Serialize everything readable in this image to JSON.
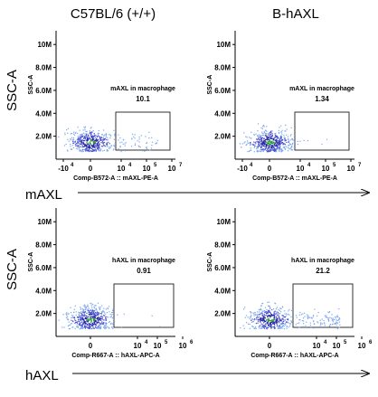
{
  "header": {
    "col1": "C57BL/6 (+/+)",
    "col2": "B-hAXL"
  },
  "row_labels": {
    "y_big": "SSC-A",
    "x_row1": "mAXL",
    "x_row2": "hAXL"
  },
  "colors": {
    "dot_dark": "#2626a8",
    "dot_mid": "#4a56d0",
    "dot_light": "#7aa8ee",
    "dot_hot": "#2f9a3a",
    "axis": "#000000"
  },
  "chart_data": [
    {
      "type": "scatter",
      "sample": "C57BL/6 (+/+)",
      "ylabel": "SSC-A",
      "xlabel": "Comp-B572-A :: mAXL-PE-A",
      "y_ticks": [
        "2.0M",
        "4.0M",
        "6.0M",
        "8.0M",
        "10M"
      ],
      "x_ticks": [
        "-10",
        "0",
        "10",
        "10",
        "10"
      ],
      "x_tick_exp": [
        "4",
        "",
        "4",
        "5",
        "7"
      ],
      "gate": {
        "label": "mAXL in macrophage",
        "percent": "10.1"
      },
      "cluster": {
        "center_logish": 0,
        "center_ssc_M": 1.5,
        "spread_ssc_M": 0.6,
        "gate_fraction": 0.101
      }
    },
    {
      "type": "scatter",
      "sample": "B-hAXL",
      "ylabel": "SSC-A",
      "xlabel": "Comp-B572-A :: mAXL-PE-A",
      "y_ticks": [
        "2.0M",
        "4.0M",
        "6.0M",
        "8.0M",
        "10M"
      ],
      "x_ticks": [
        "-10",
        "0",
        "10",
        "10",
        "10"
      ],
      "x_tick_exp": [
        "4",
        "",
        "4",
        "5",
        "7"
      ],
      "gate": {
        "label": "mAXL in macrophage",
        "percent": "1.34"
      },
      "cluster": {
        "center_logish": 0,
        "center_ssc_M": 1.5,
        "spread_ssc_M": 0.6,
        "gate_fraction": 0.0134
      }
    },
    {
      "type": "scatter",
      "sample": "C57BL/6 (+/+)",
      "ylabel": "SSC-A",
      "xlabel": "Comp-R667-A :: hAXL-APC-A",
      "y_ticks": [
        "2.0M",
        "4.0M",
        "6.0M",
        "8.0M",
        "10M"
      ],
      "x_ticks": [
        "0",
        "10",
        "10",
        "10"
      ],
      "x_tick_exp": [
        "",
        "4",
        "5",
        "6"
      ],
      "gate": {
        "label": "hAXL in macrophage",
        "percent": "0.91"
      },
      "cluster": {
        "center_logish": 0,
        "center_ssc_M": 1.5,
        "spread_ssc_M": 0.6,
        "gate_fraction": 0.0091
      }
    },
    {
      "type": "scatter",
      "sample": "B-hAXL",
      "ylabel": "SSC-A",
      "xlabel": "Comp-R667-A :: hAXL-APC-A",
      "y_ticks": [
        "2.0M",
        "4.0M",
        "6.0M",
        "8.0M",
        "10M"
      ],
      "x_ticks": [
        "0",
        "10",
        "10",
        "10"
      ],
      "x_tick_exp": [
        "",
        "4",
        "5",
        "6"
      ],
      "gate": {
        "label": "hAXL in macrophage",
        "percent": "21.2"
      },
      "cluster": {
        "center_logish": 0,
        "center_ssc_M": 1.5,
        "spread_ssc_M": 0.6,
        "gate_fraction": 0.212
      }
    }
  ]
}
